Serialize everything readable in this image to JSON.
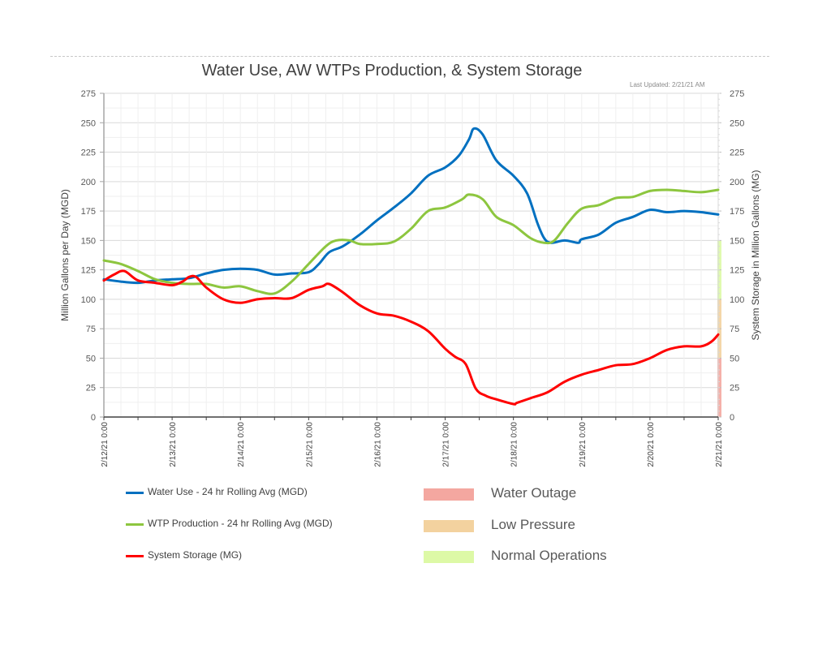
{
  "header": {
    "title": "Water Use, AW WTPs Production, & System Storage",
    "last_updated": "Last Updated: 2/21/21 AM"
  },
  "chart_data": {
    "type": "line",
    "title": "Water Use, AW WTPs Production, & System Storage",
    "ylabel": "Million Gallons per Day (MGD)",
    "y2label": "System Storage in Million Gallons (MG)",
    "ylim": [
      0,
      275
    ],
    "y2lim": [
      0,
      275
    ],
    "yticks": [
      "0",
      "25",
      "50",
      "75",
      "100",
      "125",
      "150",
      "175",
      "200",
      "225",
      "250",
      "275"
    ],
    "y2ticks": [
      "0",
      "25",
      "50",
      "75",
      "100",
      "125",
      "150",
      "175",
      "200",
      "225",
      "250",
      "275"
    ],
    "xlim": [
      0,
      9
    ],
    "xticks": [
      "2/12/21 0:00",
      "2/13/21 0:00",
      "2/14/21 0:00",
      "2/15/21 0:00",
      "2/16/21 0:00",
      "2/17/21 0:00",
      "2/18/21 0:00",
      "2/19/21 0:00",
      "2/20/21 0:00",
      "2/21/21 0:00"
    ],
    "x_units": "days since 2/12/21 0:00",
    "grid": true,
    "series": [
      {
        "name": "Water Use - 24 hr Rolling Avg (MGD)",
        "color": "#0070C0",
        "axis": "left",
        "x": [
          0,
          0.25,
          0.5,
          0.75,
          1.0,
          1.25,
          1.5,
          1.75,
          2.0,
          2.25,
          2.5,
          2.75,
          3.0,
          3.15,
          3.3,
          3.5,
          3.75,
          4.0,
          4.25,
          4.5,
          4.75,
          5.0,
          5.2,
          5.35,
          5.42,
          5.55,
          5.75,
          6.0,
          6.2,
          6.35,
          6.45,
          6.55,
          6.75,
          6.95,
          7.0,
          7.25,
          7.5,
          7.75,
          8.0,
          8.25,
          8.5,
          8.75,
          9.0
        ],
        "values": [
          117,
          115,
          114,
          116,
          117,
          118,
          122,
          125,
          126,
          125,
          121,
          122,
          123,
          130,
          140,
          145,
          155,
          167,
          178,
          190,
          205,
          212,
          222,
          236,
          245,
          240,
          218,
          205,
          190,
          165,
          152,
          148,
          150,
          148,
          151,
          155,
          165,
          170,
          176,
          174,
          175,
          174,
          172
        ]
      },
      {
        "name": "WTP Production - 24 hr Rolling Avg (MGD)",
        "color": "#8DC63F",
        "axis": "left",
        "x": [
          0,
          0.25,
          0.5,
          0.75,
          1.0,
          1.25,
          1.5,
          1.75,
          2.0,
          2.25,
          2.5,
          2.75,
          3.0,
          3.25,
          3.4,
          3.6,
          3.75,
          4.0,
          4.25,
          4.5,
          4.75,
          5.0,
          5.25,
          5.35,
          5.55,
          5.75,
          6.0,
          6.25,
          6.45,
          6.6,
          6.8,
          7.0,
          7.25,
          7.5,
          7.75,
          8.0,
          8.25,
          8.5,
          8.75,
          9.0
        ],
        "values": [
          133,
          130,
          124,
          117,
          114,
          113,
          113,
          110,
          111,
          107,
          105,
          115,
          130,
          145,
          150,
          150,
          147,
          147,
          149,
          160,
          175,
          178,
          185,
          189,
          185,
          170,
          163,
          152,
          148,
          150,
          165,
          177,
          180,
          186,
          187,
          192,
          193,
          192,
          191,
          193
        ]
      },
      {
        "name": "System Storage (MG)",
        "color": "#FF0000",
        "axis": "right",
        "x": [
          0,
          0.15,
          0.3,
          0.5,
          0.75,
          1.0,
          1.15,
          1.25,
          1.35,
          1.5,
          1.75,
          2.0,
          2.25,
          2.5,
          2.75,
          3.0,
          3.2,
          3.3,
          3.5,
          3.75,
          4.0,
          4.25,
          4.5,
          4.75,
          5.0,
          5.15,
          5.3,
          5.45,
          5.6,
          5.75,
          6.0,
          6.05,
          6.25,
          6.5,
          6.75,
          7.0,
          7.25,
          7.5,
          7.75,
          8.0,
          8.25,
          8.5,
          8.75,
          8.9,
          9.0
        ],
        "values": [
          116,
          121,
          124,
          116,
          114,
          112,
          115,
          119,
          119,
          110,
          100,
          97,
          100,
          101,
          101,
          108,
          111,
          113,
          106,
          95,
          88,
          86,
          81,
          73,
          58,
          51,
          45,
          24,
          18,
          15,
          11,
          12,
          16,
          21,
          30,
          36,
          40,
          44,
          45,
          50,
          57,
          60,
          60,
          64,
          70
        ]
      }
    ],
    "legend": [
      {
        "label": "Water Use - 24 hr Rolling Avg (MGD)",
        "color": "#0070C0"
      },
      {
        "label": "WTP Production - 24 hr Rolling Avg (MGD)",
        "color": "#8DC63F"
      },
      {
        "label": "System Storage (MG)",
        "color": "#FF0000"
      }
    ],
    "zones": [
      {
        "label": "Water Outage",
        "range": [
          0,
          50
        ],
        "color": "#F4A7A0"
      },
      {
        "label": "Low Pressure",
        "range": [
          50,
          100
        ],
        "color": "#F3D29F"
      },
      {
        "label": "Normal Operations",
        "range": [
          100,
          150
        ],
        "color": "#DDF9A6"
      }
    ],
    "legend_placement": "bottom"
  }
}
